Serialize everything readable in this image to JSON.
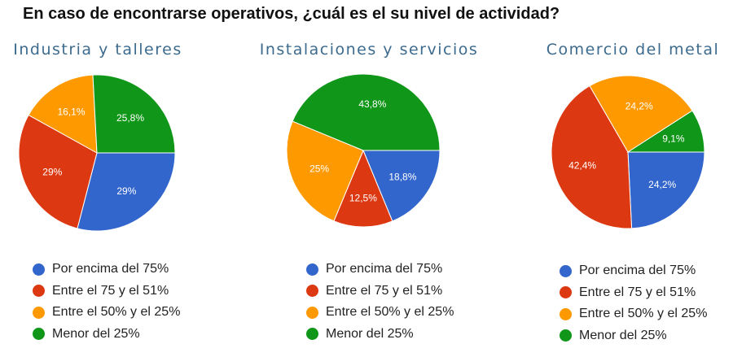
{
  "page": {
    "title": "En caso de encontrarse operativos, ¿cuál es el su nivel de actividad?"
  },
  "chart_data": [
    {
      "type": "pie",
      "title": "Industria y talleres",
      "categories": [
        "Por encima del 75%",
        "Entre el 75 y el 51%",
        "Entre el 50% y el 25%",
        "Menor del 25%"
      ],
      "values": [
        29.0,
        29.0,
        16.1,
        25.8
      ],
      "labels": [
        "29%",
        "29%",
        "16,1%",
        "25,8%"
      ],
      "colors": [
        "#3366cc",
        "#dc3912",
        "#ff9900",
        "#109618"
      ],
      "legend_position": "bottom"
    },
    {
      "type": "pie",
      "title": "Instalaciones y servicios",
      "categories": [
        "Por encima del 75%",
        "Entre el 75 y el 51%",
        "Entre el 50% y el 25%",
        "Menor del 25%"
      ],
      "values": [
        18.8,
        12.5,
        25.0,
        43.8
      ],
      "labels": [
        "18,8%",
        "12,5%",
        "25%",
        "43,8%"
      ],
      "colors": [
        "#3366cc",
        "#dc3912",
        "#ff9900",
        "#109618"
      ],
      "legend_position": "bottom"
    },
    {
      "type": "pie",
      "title": "Comercio del metal",
      "categories": [
        "Por encima del 75%",
        "Entre el 75 y el 51%",
        "Entre el 50% y el 25%",
        "Menor del 25%"
      ],
      "values": [
        24.2,
        42.4,
        24.2,
        9.1
      ],
      "labels": [
        "24,2%",
        "42,4%",
        "24,2%",
        "9,1%"
      ],
      "colors": [
        "#3366cc",
        "#dc3912",
        "#ff9900",
        "#109618"
      ],
      "legend_position": "bottom"
    }
  ]
}
